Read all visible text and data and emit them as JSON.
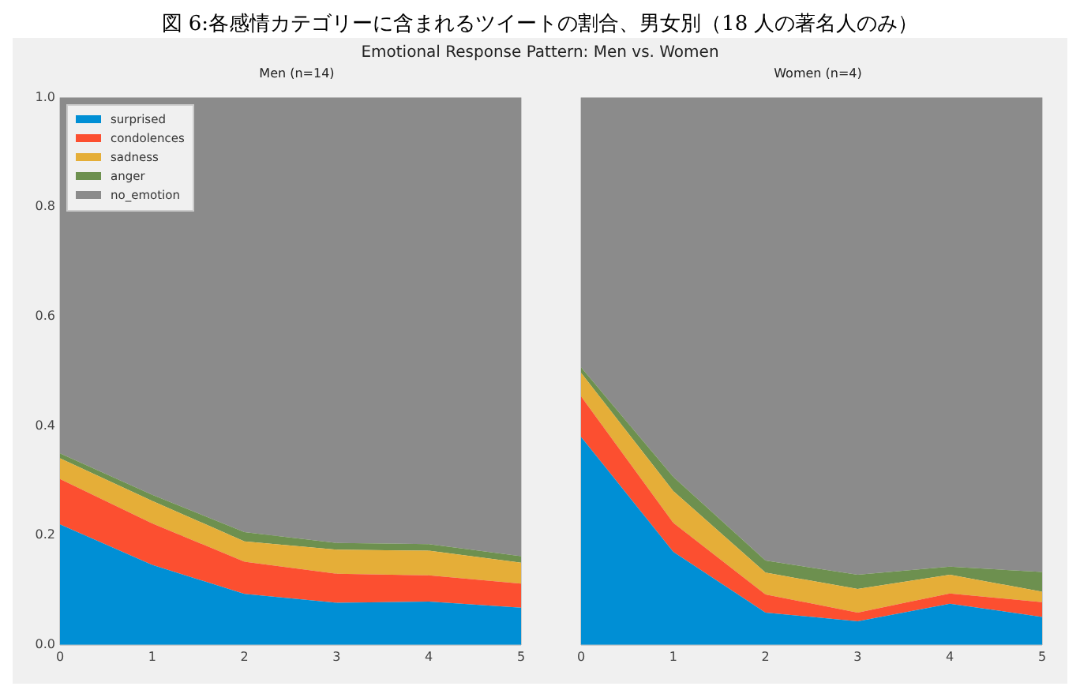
{
  "chart_data": [
    {
      "type": "area",
      "title": "Men (n=14)",
      "annotations": [
        "図 6:各感情カテゴリーに含まれるツイートの割合、男女別（18 人の著名人のみ）",
        "Emotional Response Pattern: Men vs. Women"
      ],
      "stacked": true,
      "x": [
        0,
        1,
        2,
        3,
        4,
        5
      ],
      "xlim": [
        0,
        5
      ],
      "xticks": [
        0,
        1,
        2,
        3,
        4,
        5
      ],
      "ylim": [
        0,
        1
      ],
      "yticks": [
        {
          "value": 0,
          "label": "0.0"
        },
        0.2,
        0.4,
        0.6,
        0.8,
        {
          "value": 1,
          "label": "1.0"
        }
      ],
      "grid": true,
      "legend": "top left",
      "series": [
        {
          "name": "surprised",
          "color": "#008fd5",
          "values": [
            0.22,
            0.146,
            0.093,
            0.077,
            0.079,
            0.068
          ]
        },
        {
          "name": "condolences",
          "color": "#fc4f30",
          "values": [
            0.083,
            0.076,
            0.059,
            0.053,
            0.048,
            0.044
          ]
        },
        {
          "name": "sadness",
          "color": "#e5ae38",
          "values": [
            0.038,
            0.041,
            0.037,
            0.044,
            0.045,
            0.038
          ]
        },
        {
          "name": "anger",
          "color": "#6d904f",
          "values": [
            0.009,
            0.011,
            0.017,
            0.012,
            0.012,
            0.012
          ]
        },
        {
          "name": "no_emotion",
          "color": "#8b8b8b",
          "values": [
            0.65,
            0.726,
            0.794,
            0.814,
            0.816,
            0.838
          ]
        }
      ]
    },
    {
      "type": "area",
      "title": "Women (n=4)",
      "stacked": true,
      "x": [
        0,
        1,
        2,
        3,
        4,
        5
      ],
      "xlim": [
        0,
        5
      ],
      "xticks": [
        0,
        1,
        2,
        3,
        4,
        5
      ],
      "ylim": [
        0,
        1
      ],
      "yticks": [
        0,
        0.2,
        0.4,
        0.6,
        0.8,
        1
      ],
      "grid": true,
      "tick_labels": "x",
      "series": [
        {
          "color": "#008fd5",
          "values": [
            0.38,
            0.17,
            0.059,
            0.043,
            0.075,
            0.051
          ]
        },
        {
          "color": "#fc4f30",
          "values": [
            0.074,
            0.053,
            0.033,
            0.016,
            0.019,
            0.027
          ]
        },
        {
          "color": "#e5ae38",
          "values": [
            0.043,
            0.058,
            0.04,
            0.043,
            0.034,
            0.019
          ]
        },
        {
          "color": "#6d904f",
          "values": [
            0.01,
            0.026,
            0.022,
            0.026,
            0.015,
            0.036
          ]
        },
        {
          "color": "#8b8b8b",
          "values": [
            0.493,
            0.693,
            0.846,
            0.872,
            0.857,
            0.867
          ]
        }
      ]
    }
  ]
}
